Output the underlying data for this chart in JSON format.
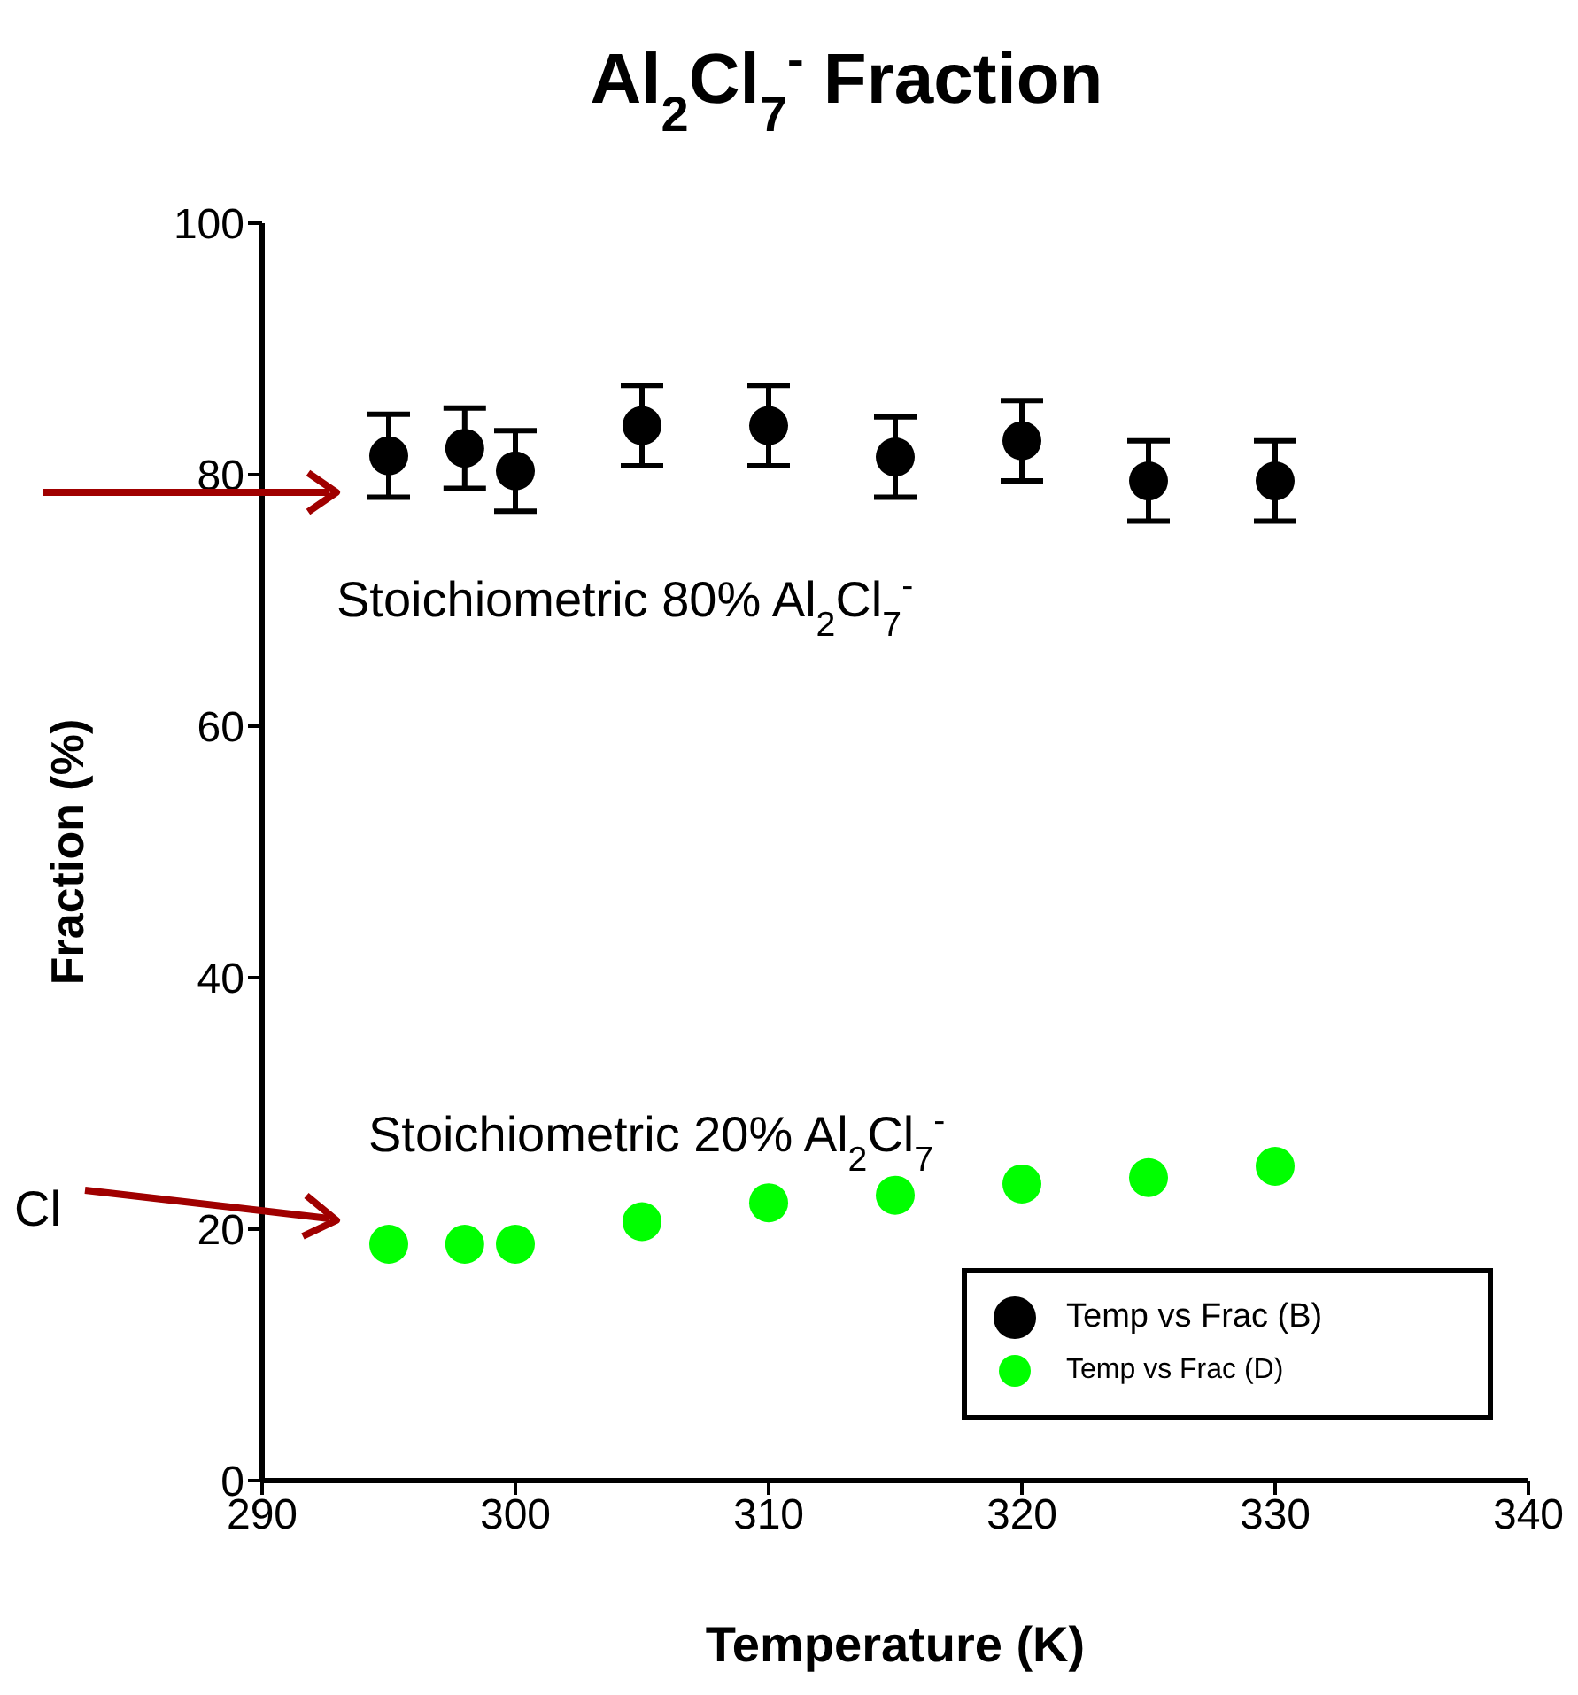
{
  "chart_data": {
    "type": "scatter",
    "title": "Al$_{2}$Cl$_{7}$$^{-}$ Fraction",
    "xlabel": "Temperature (K)",
    "ylabel": "Fraction (%)",
    "x": [
      295,
      298,
      300,
      305,
      310,
      315,
      320,
      325,
      330
    ],
    "series": [
      {
        "name": "Temp  vs Frac (B)",
        "color": "#000000",
        "values": [
          81.5,
          82.1,
          80.3,
          83.9,
          83.9,
          81.4,
          82.7,
          79.5,
          79.5
        ],
        "errors": [
          3.3,
          3.2,
          3.2,
          3.2,
          3.2,
          3.2,
          3.2,
          3.2,
          3.2
        ]
      },
      {
        "name": "Temp  vs Frac (D)",
        "color": "#00ff00",
        "values": [
          18.8,
          18.8,
          18.8,
          20.6,
          22.1,
          22.7,
          23.6,
          24.1,
          25.0
        ]
      }
    ],
    "xlim": [
      290,
      340
    ],
    "xticks": [
      290,
      300,
      310,
      320,
      330,
      340
    ],
    "ylim": [
      0,
      100
    ],
    "yticks": [
      0,
      20,
      40,
      60,
      80,
      100
    ],
    "grid": false,
    "legend": "bottom right",
    "marker": "circle",
    "annotations": [
      "Stoichiometric 80% Al$_{2}$Cl$_{7}$$^{-}$",
      "Stoichiometric 20% Al$_{2}$Cl$_{7}$$^{-}$",
      "Cl"
    ]
  }
}
